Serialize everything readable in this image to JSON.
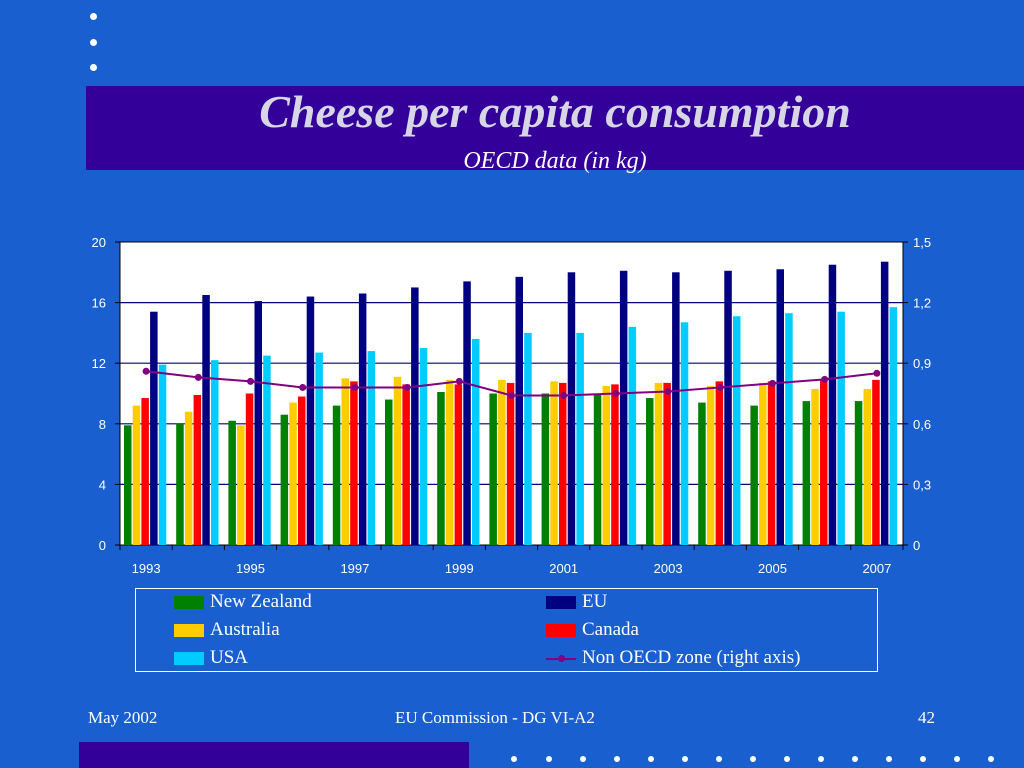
{
  "slide": {
    "title": "Cheese per capita consumption",
    "subtitle": "OECD data (in kg)",
    "footer_left": "May 2002",
    "footer_center": "EU Commission - DG VI-A2",
    "footer_right": "42"
  },
  "colors": {
    "background": "#1a5fcf",
    "title_band": "#330099",
    "plot_area": "#ffffff",
    "new_zealand": "#008000",
    "australia": "#ffcc00",
    "usa": "#00ccff",
    "eu": "#000080",
    "canada": "#ff0000",
    "non_oecd": "#800080"
  },
  "chart_data": {
    "type": "bar",
    "title": "",
    "xlabel": "",
    "ylabel": "",
    "ylim": [
      0,
      20
    ],
    "y2lim": [
      0,
      1.5
    ],
    "y_ticks": [
      "0",
      "4",
      "8",
      "12",
      "16",
      "20"
    ],
    "y2_ticks": [
      "0",
      "0,3",
      "0,6",
      "0,9",
      "1,2",
      "1,5"
    ],
    "x_tick_labels": [
      "1993",
      "1995",
      "1997",
      "1999",
      "2001",
      "2003",
      "2005",
      "2007"
    ],
    "categories": [
      "1993",
      "1994",
      "1995",
      "1996",
      "1997",
      "1998",
      "1999",
      "2000",
      "2001",
      "2002",
      "2003",
      "2004",
      "2005",
      "2006",
      "2007"
    ],
    "grid": "horizontal",
    "legend_position": "bottom",
    "series": [
      {
        "name": "New Zealand",
        "color": "#008000",
        "values": [
          7.9,
          8.0,
          8.2,
          8.6,
          9.2,
          9.6,
          10.1,
          10.0,
          10.0,
          9.9,
          9.7,
          9.4,
          9.2,
          9.5,
          9.5
        ]
      },
      {
        "name": "Australia",
        "color": "#ffcc00",
        "values": [
          9.2,
          8.8,
          7.9,
          9.4,
          11.0,
          11.1,
          10.9,
          10.9,
          10.8,
          10.5,
          10.7,
          10.5,
          10.7,
          10.3,
          10.3
        ]
      },
      {
        "name": "Canada",
        "color": "#ff0000",
        "values": [
          9.7,
          9.9,
          10.0,
          9.8,
          10.8,
          10.6,
          10.6,
          10.7,
          10.7,
          10.6,
          10.7,
          10.8,
          10.8,
          10.9,
          10.9
        ]
      },
      {
        "name": "EU",
        "color": "#000080",
        "values": [
          15.4,
          16.5,
          16.1,
          16.4,
          16.6,
          17.0,
          17.4,
          17.7,
          18.0,
          18.1,
          18.0,
          18.1,
          18.2,
          18.5,
          18.7
        ]
      },
      {
        "name": "USA",
        "color": "#00ccff",
        "values": [
          11.9,
          12.2,
          12.5,
          12.7,
          12.8,
          13.0,
          13.6,
          14.0,
          14.0,
          14.4,
          14.7,
          15.1,
          15.3,
          15.4,
          15.7
        ]
      },
      {
        "name": "Non OECD zone (right axis)",
        "color": "#800080",
        "axis": "right",
        "line": true,
        "values": [
          0.86,
          0.83,
          0.81,
          0.78,
          0.78,
          0.78,
          0.81,
          0.74,
          0.74,
          0.75,
          0.76,
          0.78,
          0.8,
          0.82,
          0.85
        ]
      }
    ]
  }
}
